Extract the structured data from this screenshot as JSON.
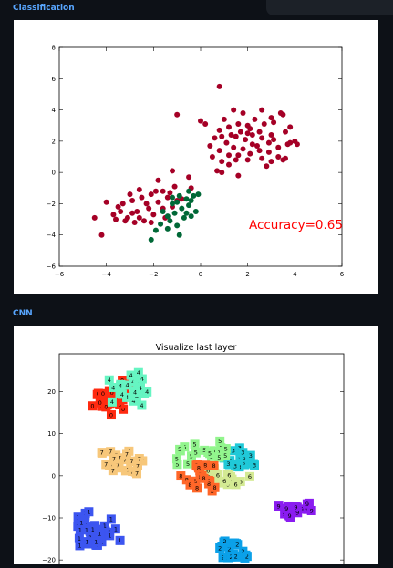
{
  "sections": {
    "classification": {
      "title": "Classification"
    },
    "cnn": {
      "title": "CNN"
    }
  },
  "colors": {
    "section_title": "#58a6ff",
    "page_bg": "#0d1117",
    "class_red": "#a50026",
    "class_green": "#006837",
    "accuracy_text": "#ff0000"
  },
  "chart_data": [
    {
      "type": "scatter",
      "annotation": "Accuracy=0.65",
      "xlim": [
        -6,
        6
      ],
      "ylim": [
        -6,
        8
      ],
      "xticks": [
        -6,
        -4,
        -2,
        0,
        2,
        4,
        6
      ],
      "yticks": [
        -6,
        -4,
        -2,
        0,
        2,
        4,
        6,
        8
      ],
      "xtick_labels": [
        "−6",
        "−4",
        "−2",
        "0",
        "2",
        "4",
        "6"
      ],
      "ytick_labels": [
        "−6",
        "−4",
        "−2",
        "0",
        "2",
        "4",
        "6",
        "8"
      ],
      "series": [
        {
          "color": "#a50026",
          "points": [
            [
              0.8,
              5.5
            ],
            [
              -1,
              3.7
            ],
            [
              1,
              3.4
            ],
            [
              0,
              3.3
            ],
            [
              0.2,
              3.1
            ],
            [
              1.4,
              4
            ],
            [
              1.2,
              2.9
            ],
            [
              0.8,
              2.7
            ],
            [
              1.5,
              2.3
            ],
            [
              2,
              2.5
            ],
            [
              2.5,
              2.6
            ],
            [
              3,
              2.4
            ],
            [
              3.5,
              3.7
            ],
            [
              2.7,
              3.1
            ],
            [
              3.1,
              3.2
            ],
            [
              2.3,
              3.4
            ],
            [
              2.6,
              4
            ],
            [
              1.8,
              3.8
            ],
            [
              3.8,
              2.9
            ],
            [
              4,
              2
            ],
            [
              3.7,
              1.8
            ],
            [
              3.3,
              1.6
            ],
            [
              2.9,
              1.9
            ],
            [
              2.6,
              2.2
            ],
            [
              2.2,
              1.8
            ],
            [
              1.8,
              1.5
            ],
            [
              1.4,
              1.6
            ],
            [
              1.1,
              1.9
            ],
            [
              0.8,
              1.4
            ],
            [
              1.2,
              1.1
            ],
            [
              1.6,
              1.1
            ],
            [
              2.1,
              1.2
            ],
            [
              2.5,
              1.4
            ],
            [
              2.9,
              1.3
            ],
            [
              3.3,
              1
            ],
            [
              3.5,
              0.8
            ],
            [
              3,
              0.7
            ],
            [
              2.6,
              0.9
            ],
            [
              2,
              0.8
            ],
            [
              1.5,
              0.8
            ],
            [
              0.9,
              0.7
            ],
            [
              0.5,
              1
            ],
            [
              0.4,
              1.7
            ],
            [
              0.6,
              2.2
            ],
            [
              0.9,
              2.3
            ],
            [
              1.3,
              2.4
            ],
            [
              1.7,
              2.6
            ],
            [
              2.1,
              2.8
            ],
            [
              3.6,
              2.6
            ],
            [
              3.4,
              3.8
            ],
            [
              3.8,
              1.9
            ],
            [
              3.1,
              2.1
            ],
            [
              2.4,
              1.7
            ],
            [
              1.9,
              2.1
            ],
            [
              0.9,
              0
            ],
            [
              1.6,
              -0.2
            ],
            [
              0.7,
              0.1
            ],
            [
              1.2,
              0.5
            ],
            [
              2.8,
              0.4
            ],
            [
              3.6,
              0.9
            ],
            [
              4.1,
              1.8
            ],
            [
              2,
              3
            ],
            [
              3,
              3.5
            ],
            [
              2.2,
              2.4
            ],
            [
              1.6,
              3.1
            ],
            [
              -1.2,
              0.1
            ],
            [
              -0.5,
              -0.3
            ],
            [
              -1.8,
              -0.5
            ],
            [
              -2.5,
              -1.6
            ],
            [
              -3,
              -1.4
            ],
            [
              -3.5,
              -2.2
            ],
            [
              -4,
              -1.9
            ],
            [
              -4.5,
              -2.9
            ],
            [
              -4.2,
              -4
            ],
            [
              -3.2,
              -3.1
            ],
            [
              -2.7,
              -2.5
            ],
            [
              -2.2,
              -2.3
            ],
            [
              -1.8,
              -1.9
            ],
            [
              -1.4,
              -1.6
            ],
            [
              -1,
              -1.8
            ],
            [
              -2.9,
              -2.6
            ],
            [
              -3.4,
              -2.5
            ],
            [
              -2.4,
              -3.1
            ],
            [
              -2,
              -2.7
            ],
            [
              -1.6,
              -2.3
            ],
            [
              -1.2,
              -2.2
            ],
            [
              -0.8,
              -1.7
            ],
            [
              -1.1,
              -0.9
            ],
            [
              -1.6,
              -1.2
            ],
            [
              -2.1,
              -1.4
            ],
            [
              -2.6,
              -1.1
            ],
            [
              -2.9,
              -1.8
            ],
            [
              -3.7,
              -2.7
            ],
            [
              -3.3,
              -2
            ],
            [
              -2.6,
              -2.9
            ],
            [
              -2.1,
              -3.2
            ],
            [
              -1.5,
              -2.9
            ],
            [
              -1.3,
              -1.3
            ],
            [
              -0.4,
              -1
            ],
            [
              -1.9,
              -1.2
            ],
            [
              -2.3,
              -2
            ],
            [
              -3.1,
              -2.9
            ],
            [
              -3.6,
              -3
            ],
            [
              -2.8,
              -3.2
            ]
          ]
        },
        {
          "color": "#006837",
          "points": [
            [
              -1.2,
              -1.6
            ],
            [
              -1,
              -1.9
            ],
            [
              -0.6,
              -1.7
            ],
            [
              -0.3,
              -1.5
            ],
            [
              -0.1,
              -1.4
            ],
            [
              -0.5,
              -2.1
            ],
            [
              -0.8,
              -2.3
            ],
            [
              -1.1,
              -2.6
            ],
            [
              -1.4,
              -2.8
            ],
            [
              -1.7,
              -3.3
            ],
            [
              -1.9,
              -3.7
            ],
            [
              -2.1,
              -4.3
            ],
            [
              -1.4,
              -3.6
            ],
            [
              -1,
              -3.4
            ],
            [
              -0.7,
              -2.9
            ],
            [
              -0.4,
              -2.8
            ],
            [
              -0.2,
              -2.5
            ],
            [
              -0.6,
              -2.6
            ],
            [
              -1.2,
              -2
            ],
            [
              -0.9,
              -1.5
            ],
            [
              -0.4,
              -1.8
            ],
            [
              -0.9,
              -4
            ],
            [
              -1.6,
              -2.5
            ],
            [
              -1.3,
              -3.1
            ],
            [
              -0.5,
              -1.2
            ]
          ]
        }
      ]
    },
    {
      "type": "scatter",
      "title": "Visualize last layer",
      "yticks": [
        -20,
        -10,
        0,
        10,
        20
      ],
      "ytick_labels": [
        "−20",
        "−10",
        "0",
        "10",
        "20"
      ],
      "ylim": [
        -23,
        29
      ],
      "xlim": [
        -24,
        35
      ],
      "clusters": [
        {
          "label": "0",
          "color": "#ff2a10",
          "center": [
            -12.5,
            18.5
          ],
          "spread": [
            3.3,
            2.8
          ],
          "count": 38
        },
        {
          "label": "1",
          "color": "#3c55f0",
          "center": [
            -16,
            -13
          ],
          "spread": [
            3.2,
            3.4
          ],
          "count": 42
        },
        {
          "label": "2",
          "color": "#0ba0e8",
          "center": [
            12,
            -18.5
          ],
          "spread": [
            3.5,
            2.4
          ],
          "count": 30
        },
        {
          "label": "3",
          "color": "#20c9d8",
          "center": [
            13.5,
            4
          ],
          "spread": [
            2.8,
            2.3
          ],
          "count": 22
        },
        {
          "label": "4",
          "color": "#66f5c2",
          "center": [
            -9,
            20
          ],
          "spread": [
            3.2,
            3.2
          ],
          "count": 26
        },
        {
          "label": "5",
          "color": "#92f58d",
          "center": [
            6.5,
            5.2
          ],
          "spread": [
            4.5,
            2.2
          ],
          "count": 24
        },
        {
          "label": "6",
          "color": "#d4ea93",
          "center": [
            10,
            0.5
          ],
          "spread": [
            4,
            2
          ],
          "count": 24
        },
        {
          "label": "7",
          "color": "#f7c77a",
          "center": [
            -11,
            3.5
          ],
          "spread": [
            3.2,
            3
          ],
          "count": 30
        },
        {
          "label": "8",
          "color": "#ff6628",
          "center": [
            4.8,
            0.3
          ],
          "spread": [
            2.8,
            3.5
          ],
          "count": 20
        },
        {
          "label": "9",
          "color": "#8a1cf0",
          "center": [
            25,
            -8
          ],
          "spread": [
            2.8,
            1.6
          ],
          "count": 20
        }
      ]
    }
  ]
}
